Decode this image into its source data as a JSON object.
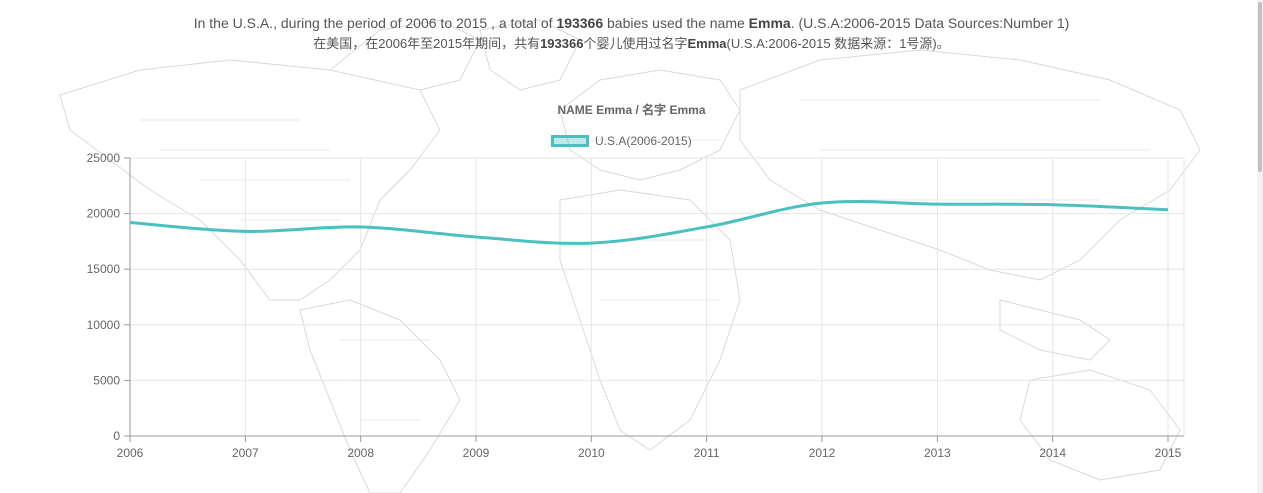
{
  "description": {
    "en_prefix": "In the U.S.A., during the period of 2006 to 2015 , a total of ",
    "en_total": "193366",
    "en_mid": " babies used the name ",
    "en_name": "Emma",
    "en_suffix": ". (U.S.A:2006-2015 Data Sources:Number 1)",
    "zh_prefix": "在美国，在2006年至2015年期间，共有",
    "zh_total": "193366",
    "zh_mid": "个婴儿使用过名字",
    "zh_name": "Emma",
    "zh_suffix": "(U.S.A:2006-2015 数据来源：1号源)。"
  },
  "colors": {
    "line": "#4bc0c0",
    "fill": "rgba(75,192,192,0.35)",
    "grid": "#e6e6e6",
    "axis": "#999999",
    "tick_text": "#666666"
  },
  "chart_data": {
    "type": "line",
    "title": "NAME Emma / 名字 Emma",
    "categories": [
      "2006",
      "2007",
      "2008",
      "2009",
      "2010",
      "2011",
      "2012",
      "2013",
      "2014",
      "2015"
    ],
    "series": [
      {
        "name": "U.S.A(2006-2015)",
        "values": [
          19200,
          18400,
          18800,
          17900,
          17350,
          18800,
          20950,
          20850,
          20800,
          20350
        ]
      }
    ],
    "yticks": [
      "0",
      "5000",
      "10000",
      "15000",
      "20000",
      "25000"
    ],
    "ylim": [
      0,
      25000
    ],
    "grid": true,
    "legend_position": "top-center"
  }
}
